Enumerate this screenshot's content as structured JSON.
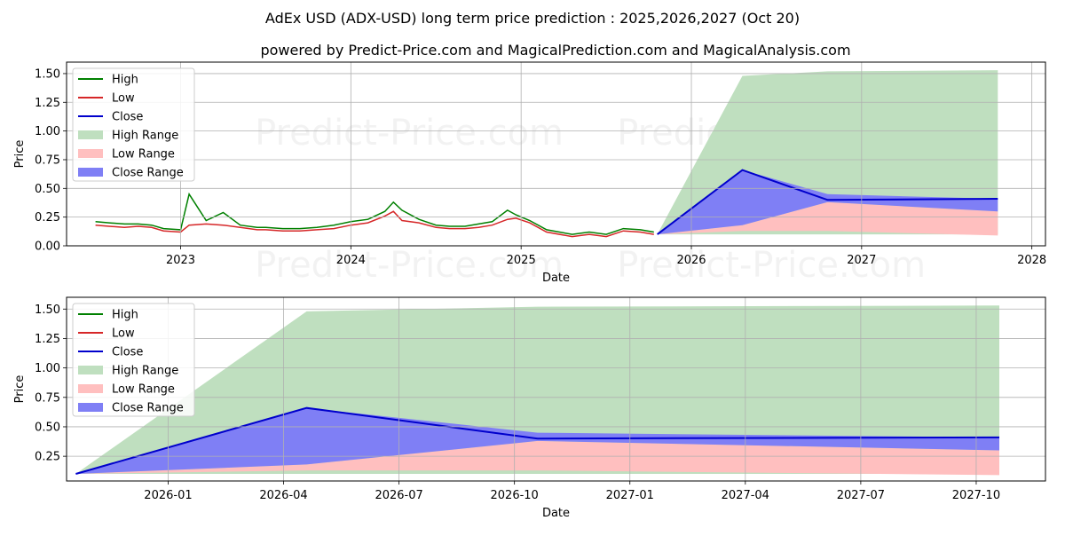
{
  "title": "AdEx USD (ADX-USD) long term price prediction : 2025,2026,2027 (Oct 20)",
  "subtitle": "powered by Predict-Price.com and MagicalPrediction.com and MagicalAnalysis.com",
  "watermark": "Predict-Price.com",
  "colors": {
    "high": "#008000",
    "low": "#d62728",
    "close": "#0000cc",
    "high_range": "#bfdfbf",
    "low_range": "#ffbfbf",
    "close_range": "#7f7ff5",
    "grid": "#b0b0b0"
  },
  "chart_data": [
    {
      "type": "area",
      "name": "full-history",
      "xlabel": "Date",
      "ylabel": "Price",
      "xlim": [
        2022.33,
        2028.08
      ],
      "ylim": [
        0,
        1.6
      ],
      "xticks": [
        2023,
        2024,
        2025,
        2026,
        2027,
        2028
      ],
      "xtick_labels": [
        "2023",
        "2024",
        "2025",
        "2026",
        "2027",
        "2028"
      ],
      "yticks": [
        0.0,
        0.25,
        0.5,
        0.75,
        1.0,
        1.25,
        1.5
      ],
      "ytick_labels": [
        "0.00",
        "0.25",
        "0.50",
        "0.75",
        "1.00",
        "1.25",
        "1.50"
      ],
      "grid": true,
      "legend": [
        "High",
        "Low",
        "Close",
        "High Range",
        "Low Range",
        "Close Range"
      ],
      "legend_position": "upper-left",
      "history": {
        "x": [
          2022.5,
          2022.58,
          2022.67,
          2022.75,
          2022.83,
          2022.9,
          2023.0,
          2023.05,
          2023.15,
          2023.25,
          2023.35,
          2023.45,
          2023.5,
          2023.6,
          2023.7,
          2023.8,
          2023.9,
          2024.0,
          2024.1,
          2024.2,
          2024.25,
          2024.3,
          2024.4,
          2024.5,
          2024.58,
          2024.67,
          2024.75,
          2024.83,
          2024.92,
          2024.97,
          2025.05,
          2025.15,
          2025.3,
          2025.4,
          2025.5,
          2025.6,
          2025.7,
          2025.78
        ],
        "low": [
          0.18,
          0.17,
          0.16,
          0.17,
          0.16,
          0.13,
          0.12,
          0.18,
          0.19,
          0.18,
          0.16,
          0.14,
          0.14,
          0.13,
          0.13,
          0.14,
          0.15,
          0.18,
          0.2,
          0.26,
          0.3,
          0.22,
          0.2,
          0.16,
          0.15,
          0.15,
          0.16,
          0.18,
          0.23,
          0.24,
          0.2,
          0.12,
          0.08,
          0.1,
          0.08,
          0.13,
          0.12,
          0.1
        ],
        "high": [
          0.21,
          0.2,
          0.19,
          0.19,
          0.18,
          0.15,
          0.14,
          0.45,
          0.22,
          0.29,
          0.18,
          0.16,
          0.16,
          0.15,
          0.15,
          0.16,
          0.18,
          0.21,
          0.23,
          0.3,
          0.38,
          0.31,
          0.23,
          0.18,
          0.17,
          0.17,
          0.19,
          0.21,
          0.31,
          0.27,
          0.22,
          0.14,
          0.1,
          0.12,
          0.1,
          0.15,
          0.14,
          0.12
        ]
      },
      "forecast": {
        "x": [
          2025.8,
          2026.3,
          2026.8,
          2027.8
        ],
        "close": [
          0.1,
          0.66,
          0.4,
          0.41
        ],
        "high_range": [
          [
            0.1,
            0.1
          ],
          [
            0.1,
            1.48
          ],
          [
            0.1,
            1.52
          ],
          [
            0.1,
            1.53
          ]
        ],
        "low_range": [
          [
            0.1,
            0.1
          ],
          [
            0.13,
            0.18
          ],
          [
            0.13,
            0.38
          ],
          [
            0.09,
            0.3
          ]
        ],
        "close_range": [
          [
            0.1,
            0.1
          ],
          [
            0.18,
            0.66
          ],
          [
            0.38,
            0.45
          ],
          [
            0.3,
            0.41
          ]
        ]
      }
    },
    {
      "type": "area",
      "name": "forecast-zoom",
      "xlabel": "Date",
      "ylabel": "Price",
      "xlim": [
        2025.78,
        2027.9
      ],
      "ylim": [
        0.04,
        1.6
      ],
      "xticks": [
        2025.75,
        2026.0,
        2026.25,
        2026.5,
        2026.75,
        2027.0,
        2027.25,
        2027.5,
        2027.75
      ],
      "xtick_labels": [
        "2025-10",
        "2026-01",
        "2026-04",
        "2026-07",
        "2026-10",
        "2027-01",
        "2027-04",
        "2027-07",
        "2027-10"
      ],
      "yticks": [
        0.25,
        0.5,
        0.75,
        1.0,
        1.25,
        1.5
      ],
      "ytick_labels": [
        "0.25",
        "0.50",
        "0.75",
        "1.00",
        "1.25",
        "1.50"
      ],
      "grid": true,
      "legend": [
        "High",
        "Low",
        "Close",
        "High Range",
        "Low Range",
        "Close Range"
      ],
      "legend_position": "upper-left",
      "forecast": {
        "x": [
          2025.8,
          2026.3,
          2026.8,
          2027.8
        ],
        "close": [
          0.1,
          0.66,
          0.4,
          0.41
        ],
        "high_range": [
          [
            0.1,
            0.1
          ],
          [
            0.1,
            1.48
          ],
          [
            0.1,
            1.52
          ],
          [
            0.1,
            1.53
          ]
        ],
        "low_range": [
          [
            0.1,
            0.1
          ],
          [
            0.13,
            0.18
          ],
          [
            0.13,
            0.38
          ],
          [
            0.09,
            0.3
          ]
        ],
        "close_range": [
          [
            0.1,
            0.1
          ],
          [
            0.18,
            0.66
          ],
          [
            0.38,
            0.45
          ],
          [
            0.3,
            0.41
          ]
        ]
      }
    }
  ]
}
